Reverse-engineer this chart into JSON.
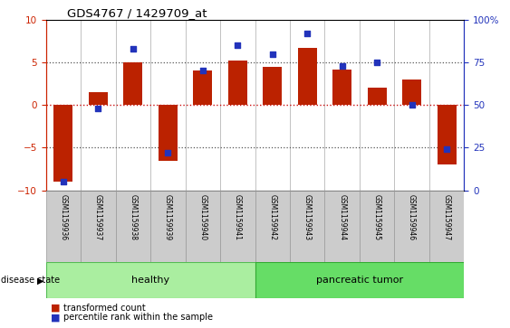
{
  "title": "GDS4767 / 1429709_at",
  "samples": [
    "GSM1159936",
    "GSM1159937",
    "GSM1159938",
    "GSM1159939",
    "GSM1159940",
    "GSM1159941",
    "GSM1159942",
    "GSM1159943",
    "GSM1159944",
    "GSM1159945",
    "GSM1159946",
    "GSM1159947"
  ],
  "transformed_count": [
    -9.0,
    1.5,
    5.0,
    -6.5,
    4.0,
    5.2,
    4.5,
    6.7,
    4.2,
    2.0,
    3.0,
    -7.0
  ],
  "percentile_rank": [
    5,
    48,
    83,
    22,
    70,
    85,
    80,
    92,
    73,
    75,
    50,
    24
  ],
  "ylim_left": [
    -10,
    10
  ],
  "ylim_right": [
    0,
    100
  ],
  "yticks_left": [
    -10,
    -5,
    0,
    5,
    10
  ],
  "yticks_right": [
    0,
    25,
    50,
    75,
    100
  ],
  "bar_color": "#bb2200",
  "dot_color": "#2233bb",
  "healthy_color": "#aaeea0",
  "tumor_color": "#66dd66",
  "healthy_label": "healthy",
  "tumor_label": "pancreatic tumor",
  "healthy_count": 6,
  "tumor_count": 6,
  "legend_bar": "transformed count",
  "legend_dot": "percentile rank within the sample",
  "disease_state_label": "disease state",
  "dotted_line_color": "#555555",
  "zero_line_color": "#cc1111",
  "bar_width": 0.55,
  "tick_bg": "#cccccc"
}
